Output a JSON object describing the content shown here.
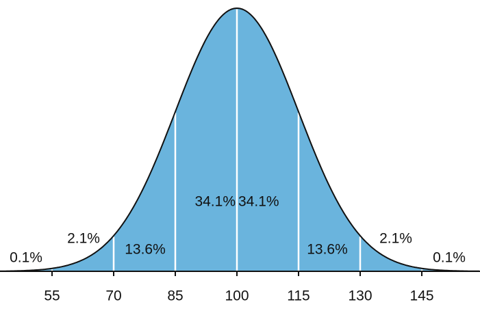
{
  "chart_data": {
    "type": "normal",
    "values": [
      0.1,
      2.1,
      13.6,
      34.1,
      34.1,
      13.6,
      2.1,
      0.1
    ],
    "value_labels": [
      "0.1%",
      "2.1%",
      "13.6%",
      "34.1%",
      "34.1%",
      "13.6%",
      "2.1%",
      "0.1%"
    ],
    "color": "#6ab4dd",
    "xlim": [
      42,
      159
    ],
    "xticks": [
      55,
      70,
      85,
      100,
      115,
      130,
      145
    ]
  }
}
